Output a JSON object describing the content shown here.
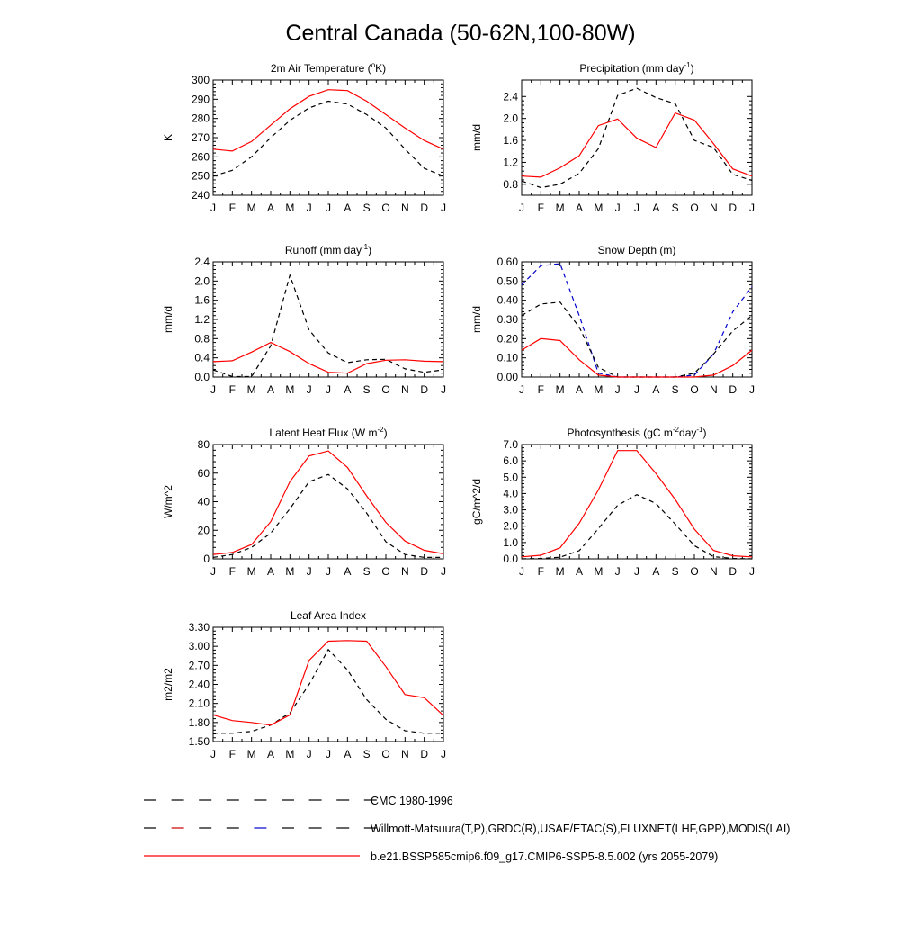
{
  "title": "Central Canada (50-62N,100-80W)",
  "legend": [
    {
      "label": "CMC 1980-1996",
      "style": "dashed",
      "colors": [
        "#000000",
        "#000000",
        "#000000",
        "#000000",
        "#000000",
        "#000000",
        "#000000",
        "#000000",
        "#000000"
      ]
    },
    {
      "label": "Willmott-Matsuura(T,P),GRDC(R),USAF/ETAC(S),FLUXNET(LHF,GPP),MODIS(LAI)",
      "style": "dashed",
      "colors": [
        "#000000",
        "#cc0000",
        "#000000",
        "#000000",
        "#0000cc",
        "#000000",
        "#000000",
        "#000000",
        "#000000"
      ]
    },
    {
      "label": "b.e21.BSSP585cmip6.f09_g17.CMIP6-SSP5-8.5.002 (yrs 2055-2079)",
      "style": "solid",
      "colors": [
        "#ff0000"
      ]
    }
  ],
  "chart_data": [
    {
      "type": "line",
      "title": "2m Air Temperature (",
      "title_sup": "o",
      "title_tail": "K)",
      "ylabel": "K",
      "x": [
        "J",
        "F",
        "M",
        "A",
        "M",
        "J",
        "J",
        "A",
        "S",
        "O",
        "N",
        "D",
        "J"
      ],
      "ylim": [
        240,
        300
      ],
      "yticks": [
        "240",
        "250",
        "260",
        "270",
        "280",
        "290",
        "300"
      ],
      "series": [
        {
          "style": "dashed",
          "color": "#000000",
          "values": [
            250,
            253,
            260,
            270,
            279,
            285.5,
            289,
            287.5,
            282,
            275,
            264,
            254,
            250
          ]
        },
        {
          "style": "solid",
          "color": "#ff0000",
          "values": [
            264,
            263,
            268,
            276.5,
            285,
            291.5,
            295,
            294.5,
            289,
            282,
            275,
            268.5,
            264
          ]
        }
      ]
    },
    {
      "type": "line",
      "title": "Precipitation (mm day",
      "title_sup": "-1",
      "title_tail": ")",
      "ylabel": "mm/d",
      "x": [
        "J",
        "F",
        "M",
        "A",
        "M",
        "J",
        "J",
        "A",
        "S",
        "O",
        "N",
        "D",
        "J"
      ],
      "ylim": [
        0.6,
        2.7
      ],
      "yticks": [
        "0.8",
        "1.2",
        "1.6",
        "2.0",
        "2.4"
      ],
      "series": [
        {
          "style": "dashed",
          "color": "#000000",
          "values": [
            0.86,
            0.74,
            0.8,
            1.0,
            1.45,
            2.42,
            2.55,
            2.38,
            2.27,
            1.6,
            1.47,
            0.98,
            0.87
          ]
        },
        {
          "style": "solid",
          "color": "#ff0000",
          "values": [
            0.95,
            0.93,
            1.1,
            1.32,
            1.87,
            1.99,
            1.64,
            1.47,
            2.1,
            1.97,
            1.54,
            1.08,
            0.95
          ]
        }
      ]
    },
    {
      "type": "line",
      "title": "Runoff (mm day",
      "title_sup": "-1",
      "title_tail": ")",
      "ylabel": "mm/d",
      "x": [
        "J",
        "F",
        "M",
        "A",
        "M",
        "J",
        "J",
        "A",
        "S",
        "O",
        "N",
        "D",
        "J"
      ],
      "ylim": [
        0,
        2.4
      ],
      "yticks": [
        "0.0",
        "0.4",
        "0.8",
        "1.2",
        "1.6",
        "2.0",
        "2.4"
      ],
      "series": [
        {
          "style": "dashed",
          "color": "#000000",
          "values": [
            0.15,
            0.01,
            0.01,
            0.65,
            2.12,
            0.98,
            0.5,
            0.3,
            0.36,
            0.37,
            0.17,
            0.1,
            0.15
          ]
        },
        {
          "style": "solid",
          "color": "#ff0000",
          "values": [
            0.32,
            0.34,
            0.52,
            0.72,
            0.53,
            0.28,
            0.1,
            0.08,
            0.28,
            0.35,
            0.36,
            0.33,
            0.32
          ]
        }
      ]
    },
    {
      "type": "line",
      "title": "Snow Depth (m)",
      "title_sup": "",
      "title_tail": "",
      "ylabel": "mm/d",
      "x": [
        "J",
        "F",
        "M",
        "A",
        "M",
        "J",
        "J",
        "A",
        "S",
        "O",
        "N",
        "D",
        "J"
      ],
      "ylim": [
        0,
        0.6
      ],
      "yticks": [
        "0.00",
        "0.10",
        "0.20",
        "0.30",
        "0.40",
        "0.50",
        "0.60"
      ],
      "series": [
        {
          "style": "dashed",
          "color": "#0000cc",
          "values": [
            0.48,
            0.58,
            0.59,
            0.32,
            0.02,
            0.0,
            0.0,
            0.0,
            0.0,
            0.01,
            0.12,
            0.34,
            0.47
          ]
        },
        {
          "style": "dashed",
          "color": "#000000",
          "values": [
            0.32,
            0.38,
            0.39,
            0.26,
            0.05,
            0.0,
            0.0,
            0.0,
            0.0,
            0.02,
            0.12,
            0.24,
            0.32
          ]
        },
        {
          "style": "solid",
          "color": "#ff0000",
          "values": [
            0.14,
            0.2,
            0.19,
            0.09,
            0.01,
            0.0,
            0.0,
            0.0,
            0.0,
            0.0,
            0.01,
            0.06,
            0.14
          ]
        }
      ]
    },
    {
      "type": "line",
      "title": "Latent Heat Flux (W m",
      "title_sup": "-2",
      "title_tail": ")",
      "ylabel": "W/m^2",
      "x": [
        "J",
        "F",
        "M",
        "A",
        "M",
        "J",
        "J",
        "A",
        "S",
        "O",
        "N",
        "D",
        "J"
      ],
      "ylim": [
        0,
        80
      ],
      "yticks": [
        "0",
        "20",
        "40",
        "60",
        "80"
      ],
      "series": [
        {
          "style": "dashed",
          "color": "#000000",
          "values": [
            1,
            3,
            8,
            18,
            35,
            54,
            59,
            49,
            32,
            12,
            3,
            1,
            1
          ]
        },
        {
          "style": "solid",
          "color": "#ff0000",
          "values": [
            3,
            4.5,
            10,
            26,
            54,
            72,
            75.5,
            64,
            44,
            25.5,
            12.5,
            6,
            3.5
          ]
        }
      ]
    },
    {
      "type": "line",
      "title": "Photosynthesis (gC m",
      "title_sup": "-2",
      "title_tail": "day",
      "title_sup2": "-1",
      "title_tail2": ")",
      "ylabel": "gC/m^2/d",
      "x": [
        "J",
        "F",
        "M",
        "A",
        "M",
        "J",
        "J",
        "A",
        "S",
        "O",
        "N",
        "D",
        "J"
      ],
      "ylim": [
        0,
        7
      ],
      "yticks": [
        "0.0",
        "1.0",
        "2.0",
        "3.0",
        "4.0",
        "5.0",
        "6.0",
        "7.0"
      ],
      "series": [
        {
          "style": "dashed",
          "color": "#000000",
          "values": [
            0.0,
            0.02,
            0.1,
            0.5,
            1.85,
            3.28,
            3.93,
            3.39,
            2.13,
            0.81,
            0.13,
            0.03,
            0.0
          ]
        },
        {
          "style": "solid",
          "color": "#ff0000",
          "values": [
            0.12,
            0.22,
            0.68,
            2.18,
            4.22,
            6.63,
            6.63,
            5.23,
            3.64,
            1.82,
            0.52,
            0.19,
            0.12
          ]
        }
      ]
    },
    {
      "type": "line",
      "title": "Leaf Area Index",
      "title_sup": "",
      "title_tail": "",
      "ylabel": "m2/m2",
      "x": [
        "J",
        "F",
        "M",
        "A",
        "M",
        "J",
        "J",
        "A",
        "S",
        "O",
        "N",
        "D",
        "J"
      ],
      "ylim": [
        1.5,
        3.3
      ],
      "yticks": [
        "1.50",
        "1.80",
        "2.10",
        "2.40",
        "2.70",
        "3.00",
        "3.30"
      ],
      "series": [
        {
          "style": "dashed",
          "color": "#000000",
          "values": [
            1.63,
            1.63,
            1.66,
            1.76,
            1.95,
            2.4,
            2.95,
            2.63,
            2.16,
            1.85,
            1.67,
            1.63,
            1.63
          ]
        },
        {
          "style": "solid",
          "color": "#ff0000",
          "values": [
            1.92,
            1.83,
            1.8,
            1.76,
            1.92,
            2.78,
            3.08,
            3.09,
            3.08,
            2.68,
            2.24,
            2.19,
            1.91
          ]
        }
      ]
    }
  ]
}
